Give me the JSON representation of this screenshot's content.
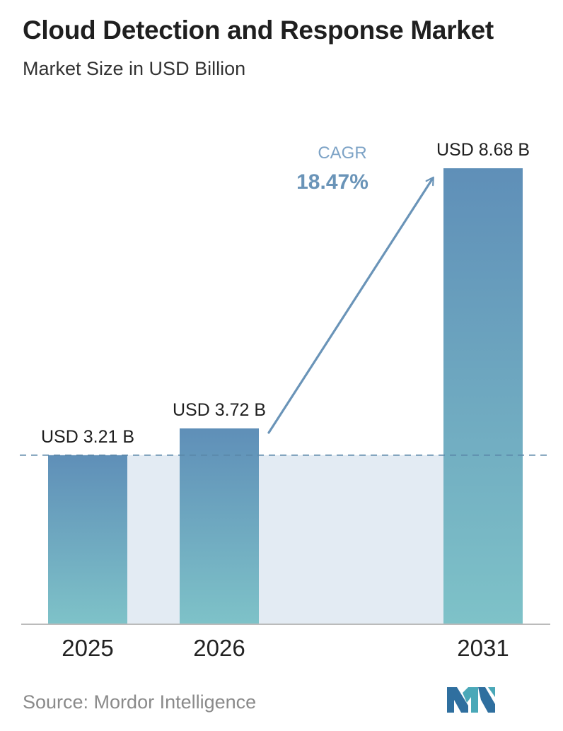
{
  "header": {
    "title": "Cloud Detection and Response Market",
    "subtitle": "Market Size in USD Billion"
  },
  "chart_data": {
    "type": "bar",
    "categories": [
      "2025",
      "2026",
      "2031"
    ],
    "values": [
      3.21,
      3.72,
      8.68
    ],
    "value_labels": [
      "USD 3.21 B",
      "USD 3.72 B",
      "USD 8.68 B"
    ],
    "ylim": [
      0,
      8.68
    ],
    "grid": false,
    "annotation": {
      "label": "CAGR",
      "value": "18.47%",
      "from_category": "2026",
      "to_category": "2031"
    },
    "reference_line": {
      "value": 3.21,
      "style": "dashed"
    },
    "colors": {
      "bar_top": "#5f8fb8",
      "bar_bottom": "#7ec2c8",
      "band": "#e3ebf3",
      "arrow": "#6a94b8",
      "dashed_line": "#5a86a8",
      "axis": "#bbbbbb"
    }
  },
  "footer": {
    "source": "Source: Mordor Intelligence",
    "logo_icon": "mordor-intelligence-logo-icon"
  }
}
